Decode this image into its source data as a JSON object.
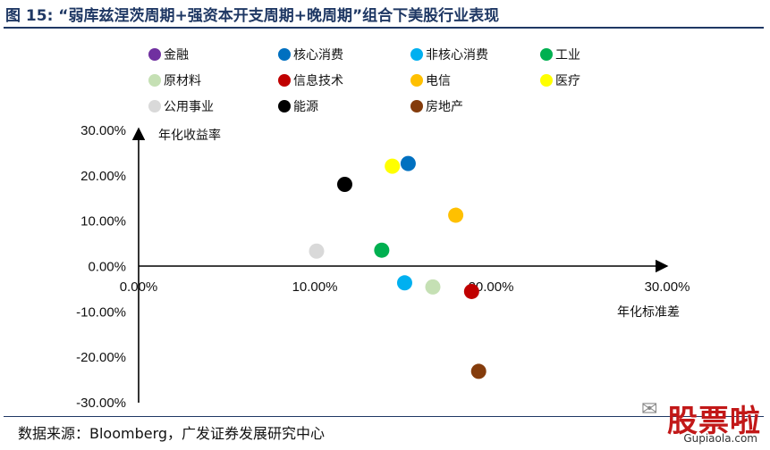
{
  "figure_title": "图 15: “弱库兹涅茨周期+强资本开支周期+晚周期”组合下美股行业表现",
  "source": "数据来源：Bloomberg，广发证券发展研究中心",
  "watermark": {
    "text": "股票啦",
    "url": "Gupiaola.com"
  },
  "chart_data": {
    "type": "scatter",
    "xlabel": "年化标准差",
    "ylabel": "年化收益率",
    "xlim": [
      0,
      0.3
    ],
    "ylim": [
      -0.3,
      0.3
    ],
    "x_ticks": [
      0,
      0.1,
      0.2,
      0.3
    ],
    "x_tick_labels": [
      "0.00%",
      "10.00%",
      "20.00%",
      "30.00%"
    ],
    "y_ticks": [
      0.3,
      0.2,
      0.1,
      0.0,
      -0.1,
      -0.2,
      -0.3
    ],
    "y_tick_labels": [
      "30.00%",
      "20.00%",
      "10.00%",
      "0.00%",
      "-10.00%",
      "-20.00%",
      "-30.00%"
    ],
    "grid": false,
    "legend_position": "top",
    "series": [
      {
        "name": "金融",
        "color": "#7030a0",
        "x": null,
        "y": null
      },
      {
        "name": "核心消费",
        "color": "#0070c0",
        "x": 0.153,
        "y": 0.227
      },
      {
        "name": "非核心消费",
        "color": "#00b0f0",
        "x": 0.151,
        "y": -0.036
      },
      {
        "name": "工业",
        "color": "#00b050",
        "x": 0.138,
        "y": 0.036
      },
      {
        "name": "原材料",
        "color": "#c5e0b4",
        "x": 0.167,
        "y": -0.045
      },
      {
        "name": "信息技术",
        "color": "#c00000",
        "x": 0.189,
        "y": -0.055
      },
      {
        "name": "电信",
        "color": "#ffc000",
        "x": 0.18,
        "y": 0.113
      },
      {
        "name": "医疗",
        "color": "#ffff00",
        "x": 0.144,
        "y": 0.221
      },
      {
        "name": "公用事业",
        "color": "#d9d9d9",
        "x": 0.101,
        "y": 0.034
      },
      {
        "name": "能源",
        "color": "#000000",
        "x": 0.117,
        "y": 0.181
      },
      {
        "name": "房地产",
        "color": "#843c0c",
        "x": 0.193,
        "y": -0.231
      }
    ]
  }
}
